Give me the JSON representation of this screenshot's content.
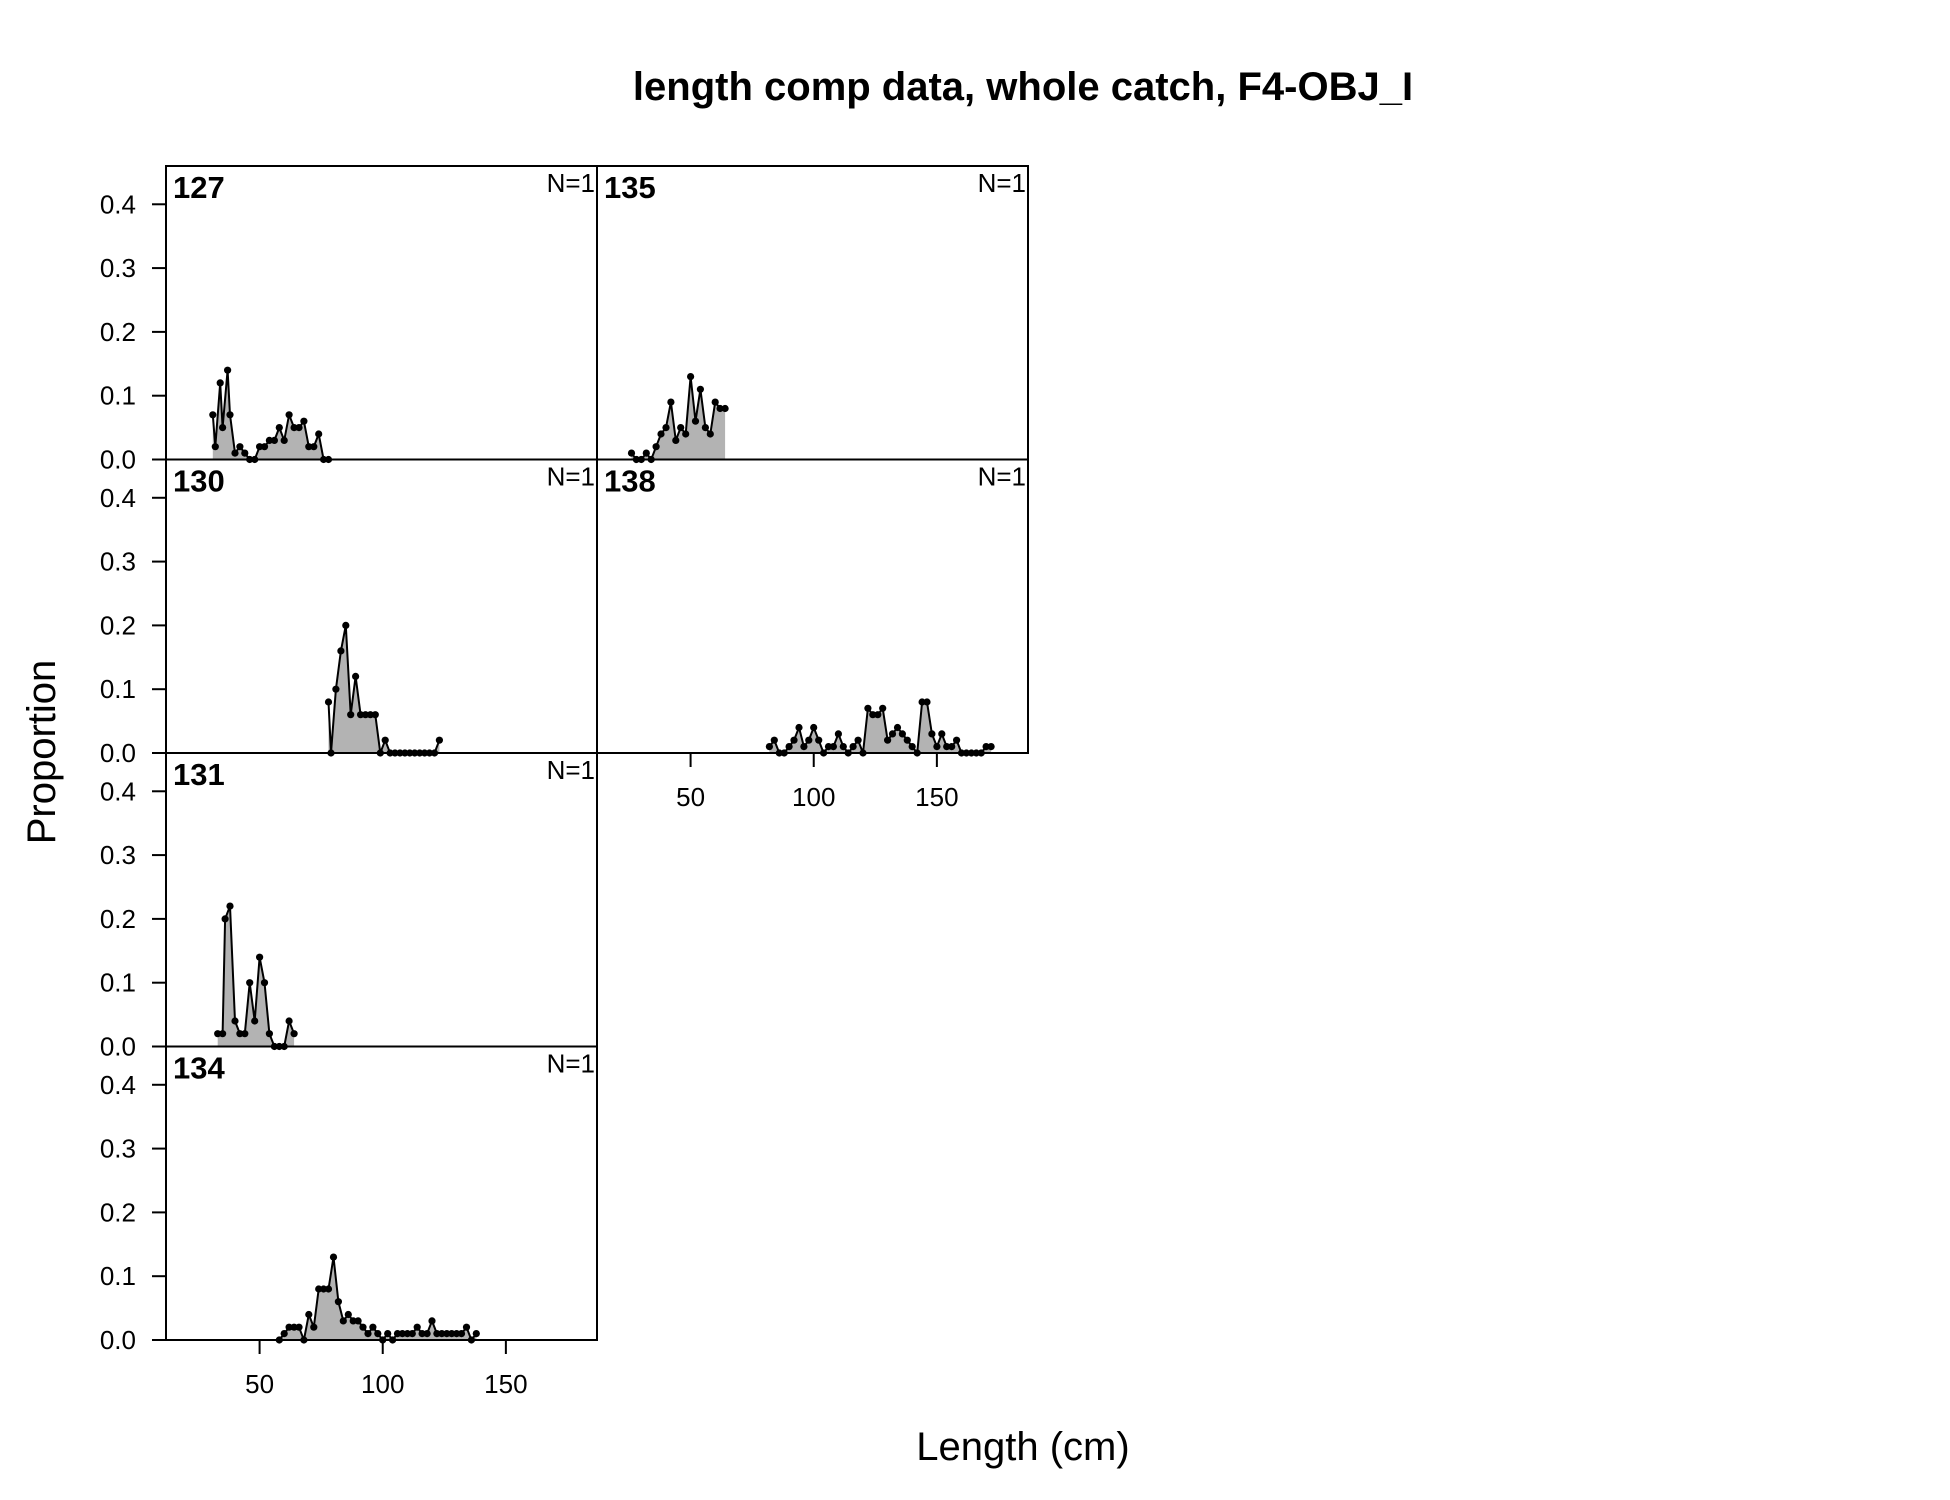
{
  "chart_data": {
    "type": "area",
    "title": "length comp data, whole catch, F4-OBJ_I",
    "xlabel": "Length (cm)",
    "ylabel": "Proportion",
    "xlim": [
      12,
      187
    ],
    "ylim": [
      0,
      0.46
    ],
    "x_ticks": [
      "50",
      "100",
      "150"
    ],
    "y_ticks": [
      "0.0",
      "0.1",
      "0.2",
      "0.3",
      "0.4"
    ],
    "fill_color": "#b3b3b3",
    "line_color": "#000000",
    "grid": false,
    "panels": [
      {
        "label": "127",
        "n_label": "N=1",
        "x": [
          31,
          32,
          34,
          35,
          37,
          38,
          40,
          42,
          44,
          46,
          48,
          50,
          52,
          54,
          56,
          58,
          60,
          62,
          64,
          66,
          68,
          70,
          72,
          74,
          76,
          78
        ],
        "y": [
          0.07,
          0.02,
          0.12,
          0.05,
          0.14,
          0.07,
          0.01,
          0.02,
          0.01,
          0.0,
          0.0,
          0.02,
          0.02,
          0.03,
          0.03,
          0.05,
          0.03,
          0.07,
          0.05,
          0.05,
          0.06,
          0.02,
          0.02,
          0.04,
          0.0,
          0.0
        ]
      },
      {
        "label": "130",
        "n_label": "N=1",
        "x": [
          78,
          79,
          81,
          83,
          85,
          87,
          89,
          91,
          93,
          95,
          97,
          99,
          101,
          103,
          105,
          107,
          109,
          111,
          113,
          115,
          117,
          119,
          121,
          123
        ],
        "y": [
          0.08,
          0.0,
          0.1,
          0.16,
          0.2,
          0.06,
          0.12,
          0.06,
          0.06,
          0.06,
          0.06,
          0.0,
          0.02,
          0.0,
          0.0,
          0.0,
          0.0,
          0.0,
          0.0,
          0.0,
          0.0,
          0.0,
          0.0,
          0.02
        ]
      },
      {
        "label": "131",
        "n_label": "N=1",
        "x": [
          33,
          35,
          36,
          38,
          40,
          42,
          44,
          46,
          48,
          50,
          52,
          54,
          56,
          58,
          60,
          62,
          64
        ],
        "y": [
          0.02,
          0.02,
          0.2,
          0.22,
          0.04,
          0.02,
          0.02,
          0.1,
          0.04,
          0.14,
          0.1,
          0.02,
          0.0,
          0.0,
          0.0,
          0.04,
          0.02
        ]
      },
      {
        "label": "134",
        "n_label": "N=1",
        "x": [
          58,
          60,
          62,
          64,
          66,
          68,
          70,
          72,
          74,
          76,
          78,
          80,
          82,
          84,
          86,
          88,
          90,
          92,
          94,
          96,
          98,
          100,
          102,
          104,
          106,
          108,
          110,
          112,
          114,
          116,
          118,
          120,
          122,
          124,
          126,
          128,
          130,
          132,
          134,
          136,
          138
        ],
        "y": [
          0.0,
          0.01,
          0.02,
          0.02,
          0.02,
          0.0,
          0.04,
          0.02,
          0.08,
          0.08,
          0.08,
          0.13,
          0.06,
          0.03,
          0.04,
          0.03,
          0.03,
          0.02,
          0.01,
          0.02,
          0.01,
          0.0,
          0.01,
          0.0,
          0.01,
          0.01,
          0.01,
          0.01,
          0.02,
          0.01,
          0.01,
          0.03,
          0.01,
          0.01,
          0.01,
          0.01,
          0.01,
          0.01,
          0.02,
          0.0,
          0.01
        ]
      },
      {
        "label": "135",
        "n_label": "N=1",
        "x": [
          26,
          28,
          30,
          32,
          34,
          36,
          38,
          40,
          42,
          44,
          46,
          48,
          50,
          52,
          54,
          56,
          58,
          60,
          62,
          64
        ],
        "y": [
          0.01,
          0.0,
          0.0,
          0.01,
          0.0,
          0.02,
          0.04,
          0.05,
          0.09,
          0.03,
          0.05,
          0.04,
          0.13,
          0.06,
          0.11,
          0.05,
          0.04,
          0.09,
          0.08,
          0.08
        ]
      },
      {
        "label": "138",
        "n_label": "N=1",
        "x": [
          82,
          84,
          86,
          88,
          90,
          92,
          94,
          96,
          98,
          100,
          102,
          104,
          106,
          108,
          110,
          112,
          114,
          116,
          118,
          120,
          122,
          124,
          126,
          128,
          130,
          132,
          134,
          136,
          138,
          140,
          142,
          144,
          146,
          148,
          150,
          152,
          154,
          156,
          158,
          160,
          162,
          164,
          166,
          168,
          170,
          172
        ],
        "y": [
          0.01,
          0.02,
          0.0,
          0.0,
          0.01,
          0.02,
          0.04,
          0.01,
          0.02,
          0.04,
          0.02,
          0.0,
          0.01,
          0.01,
          0.03,
          0.01,
          0.0,
          0.01,
          0.02,
          0.0,
          0.07,
          0.06,
          0.06,
          0.07,
          0.02,
          0.03,
          0.04,
          0.03,
          0.02,
          0.01,
          0.0,
          0.08,
          0.08,
          0.03,
          0.01,
          0.03,
          0.01,
          0.01,
          0.02,
          0.0,
          0.0,
          0.0,
          0.0,
          0.0,
          0.01,
          0.01
        ]
      }
    ]
  }
}
